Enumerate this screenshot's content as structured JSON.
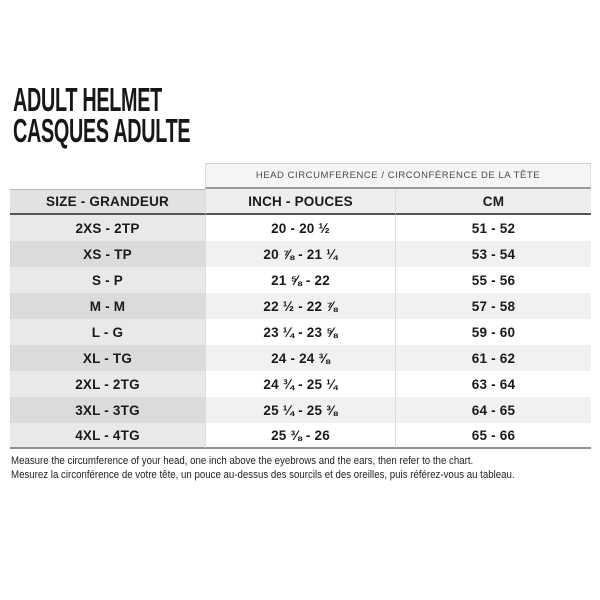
{
  "header": {
    "title_en": "ADULT HELMET",
    "title_fr": "CASQUES ADULTE"
  },
  "table": {
    "span_header": "HEAD CIRCUMFERENCE / CIRCONFÉRENCE DE LA TÊTE",
    "columns": [
      "SIZE - GRANDEUR",
      "INCH - POUCES",
      "CM"
    ],
    "rows": [
      {
        "size": "2XS - 2TP",
        "inch": "20 - 20 ½",
        "cm": "51 - 52"
      },
      {
        "size": "XS - TP",
        "inch": "20 ⅞ - 21 ¼",
        "cm": "53 - 54"
      },
      {
        "size": "S - P",
        "inch": "21 ⅝ - 22",
        "cm": "55 - 56"
      },
      {
        "size": "M - M",
        "inch": "22 ½ - 22 ⅞",
        "cm": "57 - 58"
      },
      {
        "size": "L - G",
        "inch": "23 ¼ - 23 ⅝",
        "cm": "59 - 60"
      },
      {
        "size": "XL - TG",
        "inch": "24 - 24 ⅜",
        "cm": "61 - 62"
      },
      {
        "size": "2XL - 2TG",
        "inch": "24 ¾ - 25 ¼",
        "cm": "63 - 64"
      },
      {
        "size": "3XL - 3TG",
        "inch": "25 ¼ - 25 ⅜",
        "cm": "64 - 65"
      },
      {
        "size": "4XL - 4TG",
        "inch": "25 ⅜ - 26",
        "cm": "65 - 66"
      }
    ]
  },
  "footer": {
    "note_en": "Measure the circumference of your head, one inch above the eyebrows and the ears, then refer to the chart.",
    "note_fr": "Mesurez la circonférence de votre tête, un pouce au-dessus des sourcils et des oreilles, puis référez-vous au tableau."
  },
  "colors": {
    "header_row_left_bg": "#e2e2e2",
    "header_row_right_bg": "#eeeeee",
    "stripe_left_odd": "#e9e9e9",
    "stripe_left_even": "#dbdbdb",
    "stripe_right_odd": "#ffffff",
    "stripe_right_even": "#f1f1f1",
    "rule_dark": "#555555",
    "rule_bottom": "#8f8f8f",
    "text": "#1a1a1a"
  }
}
